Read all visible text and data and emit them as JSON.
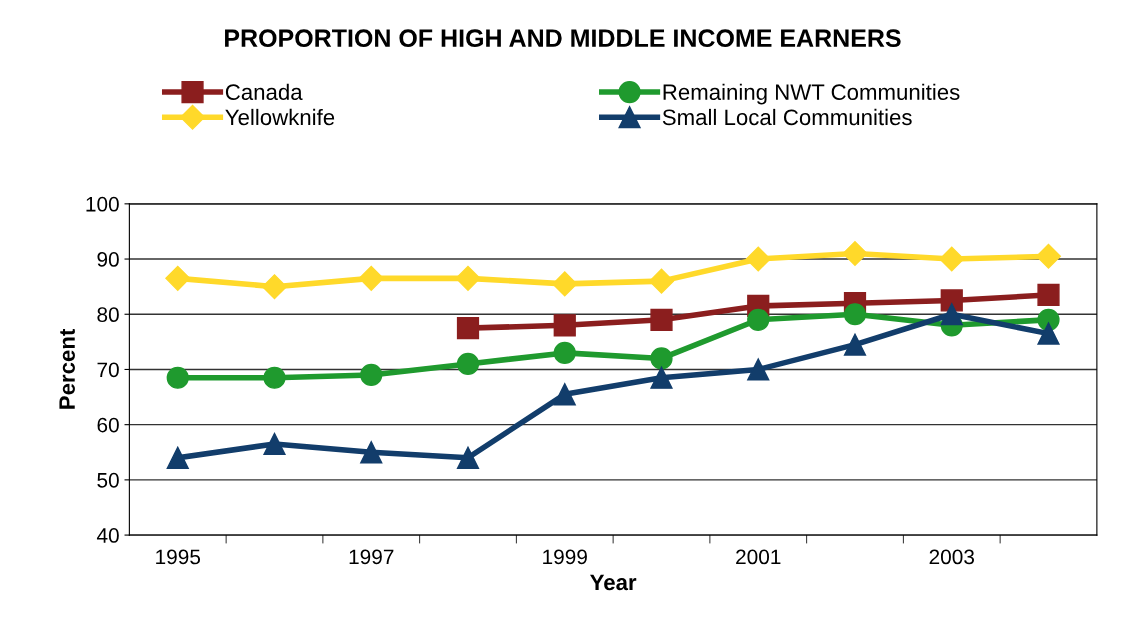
{
  "chart_data": {
    "type": "line",
    "title": "PROPORTION OF HIGH AND MIDDLE INCOME EARNERS",
    "xlabel": "Year",
    "ylabel": "Percent",
    "categories": [
      "1995",
      null,
      "1997",
      null,
      "1999",
      null,
      "2001",
      null,
      "2003",
      null
    ],
    "series": [
      {
        "name": "Canada",
        "color": "#8b1e1e",
        "marker": "square",
        "values": [
          null,
          null,
          null,
          77.5,
          78,
          79,
          81.5,
          82,
          82.5,
          83.5
        ]
      },
      {
        "name": "Yellowknife",
        "color": "#ffd92a",
        "marker": "diamond",
        "values": [
          86.5,
          85,
          86.5,
          86.5,
          85.5,
          86,
          90,
          91,
          90,
          90.5
        ]
      },
      {
        "name": "Remaining NWT Communities",
        "color": "#1f9a2e",
        "marker": "circle",
        "values": [
          68.5,
          68.5,
          69,
          71,
          73,
          72,
          79,
          80,
          78,
          79
        ]
      },
      {
        "name": "Small Local Communities",
        "color": "#123d6b",
        "marker": "triangle",
        "values": [
          54,
          56.5,
          55,
          54,
          65.5,
          68.5,
          70,
          74.5,
          80,
          76.5
        ]
      }
    ],
    "ylim": [
      40,
      100
    ],
    "yticks": [
      40,
      50,
      60,
      70,
      80,
      90,
      100
    ],
    "grid": "y",
    "legend": "top"
  }
}
